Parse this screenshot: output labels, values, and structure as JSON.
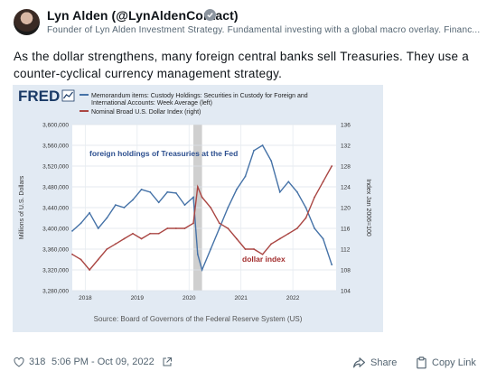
{
  "author": {
    "display_name": "Lyn Alden (@LynAldenContact)",
    "bio": "Founder of Lyn Alden Investment Strategy. Fundamental investing with a global macro overlay. Financ...",
    "avatar_icon": "user-avatar"
  },
  "post": {
    "text": "As the dollar strengthens, many foreign central banks sell Treasuries. They use a counter-cyclical currency management strategy."
  },
  "chart": {
    "logo_text": "FRED",
    "legend": [
      "Memorandum items: Custody Holdings: Securities in Custody for Foreign and International Accounts: Week Average (left)",
      "Nominal Broad U.S. Dollar Index (right)"
    ],
    "left_axis_label": "Millions of U.S. Dollars",
    "right_axis_label": "Index Jan 2006=100",
    "annotation_treasuries": "foreign holdings of Treasuries at the Fed",
    "annotation_dollar": "dollar index",
    "source": "Source: Board of Governors of the Federal Reserve System (US)",
    "colors": {
      "series_holdings": "#4572a7",
      "series_dollar": "#aa4643",
      "annotation": "#2c4f8f",
      "annotation_dollar": "#a22d2d",
      "background": "#e2eaf3"
    }
  },
  "chart_data": {
    "type": "line",
    "title": "",
    "left_ylim": [
      3280000,
      3600000
    ],
    "right_ylim": [
      104,
      136
    ],
    "left_ticks": [
      "3,280,000",
      "3,320,000",
      "3,360,000",
      "3,400,000",
      "3,440,000",
      "3,480,000",
      "3,520,000",
      "3,560,000",
      "3,600,000"
    ],
    "right_ticks": [
      "104",
      "108",
      "112",
      "116",
      "120",
      "124",
      "128",
      "132",
      "136"
    ],
    "x_ticks": [
      "2018",
      "2019",
      "2020",
      "2021",
      "2022"
    ],
    "recession_shading": [
      "2020-02",
      "2020-04"
    ],
    "series": [
      {
        "name": "Memorandum items: Custody Holdings: Securities in Custody for Foreign and International Accounts: Week Average (left)",
        "axis": "left",
        "x": [
          "2017-10",
          "2017-12",
          "2018-02",
          "2018-04",
          "2018-06",
          "2018-08",
          "2018-10",
          "2018-12",
          "2019-02",
          "2019-04",
          "2019-06",
          "2019-08",
          "2019-10",
          "2019-12",
          "2020-02",
          "2020-03",
          "2020-04",
          "2020-06",
          "2020-08",
          "2020-10",
          "2020-12",
          "2021-02",
          "2021-04",
          "2021-06",
          "2021-08",
          "2021-10",
          "2021-12",
          "2022-02",
          "2022-04",
          "2022-06",
          "2022-08",
          "2022-10"
        ],
        "values": [
          3395000,
          3410000,
          3430000,
          3400000,
          3420000,
          3445000,
          3440000,
          3455000,
          3475000,
          3470000,
          3450000,
          3470000,
          3468000,
          3445000,
          3460000,
          3350000,
          3320000,
          3360000,
          3400000,
          3440000,
          3475000,
          3500000,
          3550000,
          3560000,
          3530000,
          3470000,
          3490000,
          3470000,
          3440000,
          3400000,
          3380000,
          3330000
        ]
      },
      {
        "name": "Nominal Broad U.S. Dollar Index (right)",
        "axis": "right",
        "x": [
          "2017-10",
          "2017-12",
          "2018-02",
          "2018-04",
          "2018-06",
          "2018-08",
          "2018-10",
          "2018-12",
          "2019-02",
          "2019-04",
          "2019-06",
          "2019-08",
          "2019-10",
          "2019-12",
          "2020-02",
          "2020-03",
          "2020-04",
          "2020-06",
          "2020-08",
          "2020-10",
          "2020-12",
          "2021-02",
          "2021-04",
          "2021-06",
          "2021-08",
          "2021-10",
          "2021-12",
          "2022-02",
          "2022-04",
          "2022-06",
          "2022-08",
          "2022-10"
        ],
        "values": [
          111,
          110,
          108,
          110,
          112,
          113,
          114,
          115,
          114,
          115,
          115,
          116,
          116,
          116,
          117,
          124,
          122,
          120,
          117,
          116,
          114,
          112,
          112,
          111,
          113,
          114,
          115,
          116,
          118,
          122,
          125,
          128
        ]
      }
    ]
  },
  "footer": {
    "likes_count": "318",
    "timestamp": "5:06 PM - Oct 09, 2022",
    "share_label": "Share",
    "copy_link_label": "Copy Link"
  }
}
